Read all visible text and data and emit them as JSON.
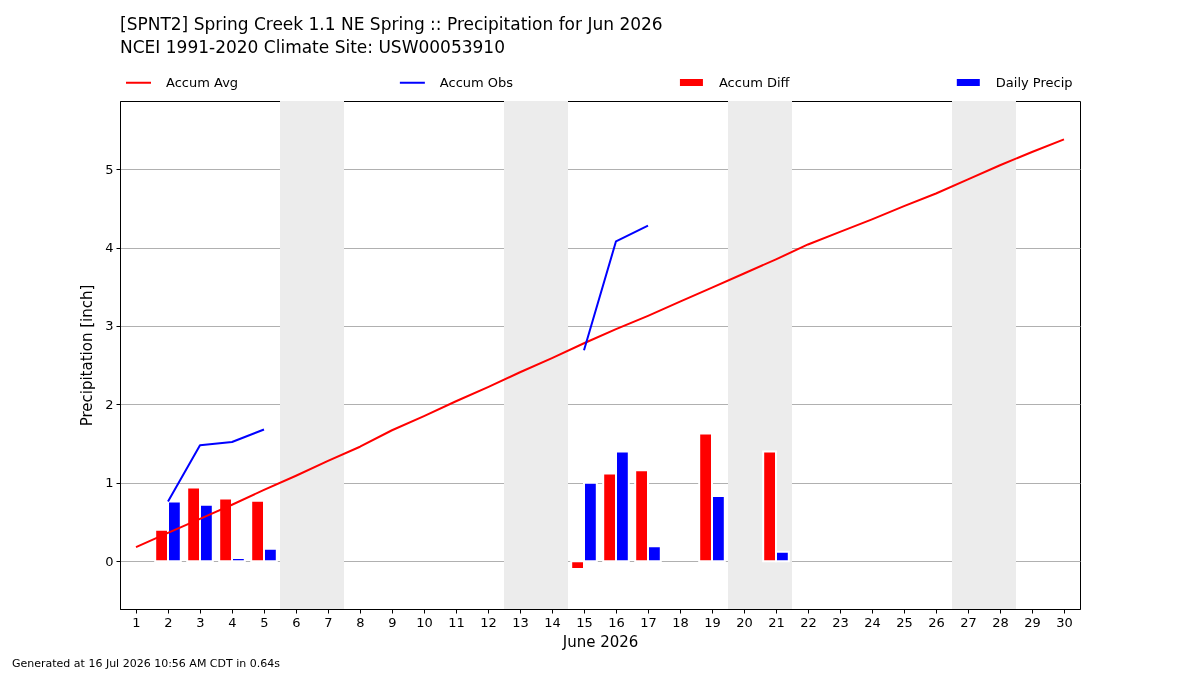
{
  "chart_data": {
    "type": "bar",
    "title": "[SPNT2] Spring Creek 1.1 NE Spring :: Precipitation for Jun 2026",
    "subtitle": "NCEI 1991-2020 Climate Site: USW00053910",
    "xlabel": "June 2026",
    "ylabel": "Precipitation [inch]",
    "x": [
      1,
      2,
      3,
      4,
      5,
      6,
      7,
      8,
      9,
      10,
      11,
      12,
      13,
      14,
      15,
      16,
      17,
      18,
      19,
      20,
      21,
      22,
      23,
      24,
      25,
      26,
      27,
      28,
      29,
      30
    ],
    "series": [
      {
        "name": "Accum Avg",
        "type": "line",
        "color": "#ff0000",
        "values": [
          0.18,
          0.36,
          0.54,
          0.72,
          0.91,
          1.09,
          1.28,
          1.46,
          1.67,
          1.85,
          2.04,
          2.22,
          2.41,
          2.59,
          2.78,
          2.96,
          3.13,
          3.31,
          3.49,
          3.67,
          3.85,
          4.04,
          4.2,
          4.36,
          4.53,
          4.69,
          4.87,
          5.05,
          5.22,
          5.38
        ]
      },
      {
        "name": "Accum Obs",
        "type": "line",
        "color": "#0000ff",
        "values": [
          null,
          0.76,
          1.48,
          1.52,
          1.68,
          null,
          null,
          null,
          null,
          null,
          null,
          null,
          null,
          null,
          2.69,
          4.08,
          4.28,
          null,
          null,
          null,
          null,
          null,
          null,
          null,
          null,
          null,
          null,
          null,
          null,
          null
        ]
      },
      {
        "name": "Accum Diff",
        "color": "#ff0000",
        "values": [
          null,
          0.4,
          0.94,
          0.8,
          0.77,
          null,
          null,
          null,
          null,
          null,
          null,
          null,
          null,
          null,
          -0.1,
          1.12,
          1.16,
          null,
          1.63,
          null,
          1.4,
          null,
          null,
          null,
          null,
          null,
          null,
          null,
          null,
          null
        ]
      },
      {
        "name": "Daily Precip",
        "color": "#0000ff",
        "values": [
          null,
          0.76,
          0.72,
          0.04,
          0.16,
          null,
          null,
          null,
          null,
          null,
          null,
          null,
          null,
          null,
          1.0,
          1.4,
          0.19,
          null,
          0.83,
          null,
          0.12,
          null,
          null,
          null,
          null,
          null,
          null,
          null,
          null,
          null
        ]
      }
    ],
    "xlim": [
      0.5,
      30.5
    ],
    "xticks": [
      1,
      2,
      3,
      4,
      5,
      6,
      7,
      8,
      9,
      10,
      11,
      12,
      13,
      14,
      15,
      16,
      17,
      18,
      19,
      20,
      21,
      22,
      23,
      24,
      25,
      26,
      27,
      28,
      29,
      30
    ],
    "ylim": [
      -0.61,
      5.87
    ],
    "yticks": [
      0,
      1,
      2,
      3,
      4,
      5
    ],
    "grid": "y",
    "legend": "top",
    "bands": [
      {
        "axis": "x",
        "from": 5.5,
        "to": 7.5,
        "color": "#ececec"
      },
      {
        "axis": "x",
        "from": 12.5,
        "to": 14.5,
        "color": "#ececec"
      },
      {
        "axis": "x",
        "from": 19.5,
        "to": 21.5,
        "color": "#ececec"
      },
      {
        "axis": "x",
        "from": 26.5,
        "to": 28.5,
        "color": "#ececec"
      }
    ],
    "annotations": [
      "Generated at 16 Jul 2026 10:56 AM CDT in 0.64s"
    ]
  }
}
